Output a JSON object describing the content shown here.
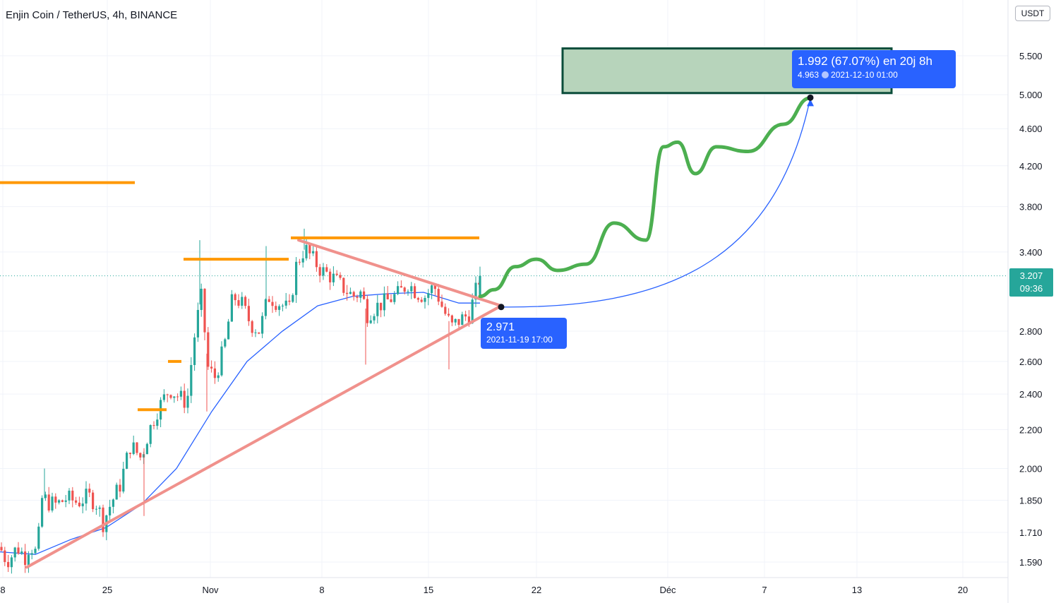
{
  "header": {
    "title": "Enjin Coin / TetherUS, 4h, BINANCE",
    "currency": "USDT"
  },
  "price_tag": {
    "price": "3.207",
    "countdown": "09:36"
  },
  "labels": {
    "start": {
      "price": "2.971",
      "datetime": "2021-11-19 17:00"
    },
    "end": {
      "change": "1.992 (67.07%) en 20j 8h",
      "price": "4.963",
      "datetime": "2021-12-10  01:00"
    }
  },
  "colors": {
    "up": "#26a69a",
    "down": "#ef5350",
    "ma": "#2962ff",
    "resistance": "#ff9800",
    "trendline": "#f0918c",
    "projection": "#4caf50",
    "target_fill": "#b7d4bb",
    "target_border": "#0b4d3a",
    "label_bg": "#2962ff"
  },
  "chart_data": {
    "type": "candlestick",
    "scale": "log",
    "x_ticks": [
      "8",
      "25",
      "Nov",
      "8",
      "15",
      "22",
      "Déc",
      "7",
      "13",
      "20"
    ],
    "y_ticks": [
      "1.590",
      "1.710",
      "1.850",
      "2.000",
      "2.200",
      "2.400",
      "2.600",
      "2.800",
      "3.400",
      "3.800",
      "4.200",
      "4.600",
      "5.000",
      "5.500"
    ],
    "y_range": [
      1.55,
      6.1
    ],
    "last_price": 3.207,
    "anchors": [
      {
        "t": 0,
        "p": 1.65
      },
      {
        "t": 6,
        "p": 1.61
      },
      {
        "t": 12,
        "p": 1.6
      },
      {
        "t": 18,
        "p": 1.62
      },
      {
        "t": 24,
        "p": 1.65
      },
      {
        "t": 30,
        "p": 1.63
      },
      {
        "t": 36,
        "p": 1.61
      },
      {
        "t": 42,
        "p": 1.66
      },
      {
        "t": 50,
        "p": 1.63
      },
      {
        "t": 55,
        "p": 1.7
      },
      {
        "t": 60,
        "p": 1.87
      },
      {
        "t": 68,
        "p": 1.84
      },
      {
        "t": 80,
        "p": 1.83
      },
      {
        "t": 95,
        "p": 1.86
      },
      {
        "t": 110,
        "p": 1.84
      },
      {
        "t": 125,
        "p": 1.87
      },
      {
        "t": 138,
        "p": 1.83
      },
      {
        "t": 146,
        "p": 1.75
      },
      {
        "t": 155,
        "p": 1.82
      },
      {
        "t": 170,
        "p": 1.92
      },
      {
        "t": 185,
        "p": 2.12
      },
      {
        "t": 200,
        "p": 2.05
      },
      {
        "t": 210,
        "p": 2.18
      },
      {
        "t": 222,
        "p": 2.3
      },
      {
        "t": 240,
        "p": 2.43
      },
      {
        "t": 255,
        "p": 2.38
      },
      {
        "t": 265,
        "p": 2.35
      },
      {
        "t": 275,
        "p": 2.75
      },
      {
        "t": 285,
        "p": 3.05
      },
      {
        "t": 295,
        "p": 2.55
      },
      {
        "t": 305,
        "p": 2.5
      },
      {
        "t": 318,
        "p": 2.7
      },
      {
        "t": 330,
        "p": 3.05
      },
      {
        "t": 342,
        "p": 3.0
      },
      {
        "t": 355,
        "p": 2.85
      },
      {
        "t": 368,
        "p": 2.8
      },
      {
        "t": 380,
        "p": 3.05
      },
      {
        "t": 395,
        "p": 3.0
      },
      {
        "t": 410,
        "p": 2.95
      },
      {
        "t": 420,
        "p": 3.3
      },
      {
        "t": 432,
        "p": 3.43
      },
      {
        "t": 442,
        "p": 3.35
      },
      {
        "t": 455,
        "p": 3.25
      },
      {
        "t": 470,
        "p": 3.2
      },
      {
        "t": 485,
        "p": 3.12
      },
      {
        "t": 500,
        "p": 3.05
      },
      {
        "t": 512,
        "p": 3.08
      },
      {
        "t": 520,
        "p": 2.92
      },
      {
        "t": 535,
        "p": 2.98
      },
      {
        "t": 550,
        "p": 3.02
      },
      {
        "t": 565,
        "p": 3.07
      },
      {
        "t": 578,
        "p": 3.15
      },
      {
        "t": 590,
        "p": 3.08
      },
      {
        "t": 602,
        "p": 3.05
      },
      {
        "t": 615,
        "p": 3.13
      },
      {
        "t": 628,
        "p": 2.95
      },
      {
        "t": 640,
        "p": 2.83
      },
      {
        "t": 652,
        "p": 2.88
      },
      {
        "t": 665,
        "p": 2.92
      },
      {
        "t": 680,
        "p": 3.2
      }
    ],
    "wicks": [
      {
        "t": 63,
        "p": 2.0
      },
      {
        "t": 204,
        "p": 1.78
      },
      {
        "t": 283,
        "p": 3.5
      },
      {
        "t": 377,
        "p": 3.45
      },
      {
        "t": 431,
        "p": 3.6
      },
      {
        "t": 518,
        "p": 2.58
      },
      {
        "t": 636,
        "p": 2.55
      },
      {
        "t": 293,
        "p": 2.3
      }
    ],
    "ma_line": [
      {
        "t": 0,
        "p": 1.63
      },
      {
        "t": 50,
        "p": 1.62
      },
      {
        "t": 100,
        "p": 1.68
      },
      {
        "t": 150,
        "p": 1.73
      },
      {
        "t": 200,
        "p": 1.83
      },
      {
        "t": 250,
        "p": 2.0
      },
      {
        "t": 300,
        "p": 2.3
      },
      {
        "t": 350,
        "p": 2.6
      },
      {
        "t": 400,
        "p": 2.8
      },
      {
        "t": 450,
        "p": 2.98
      },
      {
        "t": 500,
        "p": 3.05
      },
      {
        "t": 550,
        "p": 3.07
      },
      {
        "t": 600,
        "p": 3.08
      },
      {
        "t": 650,
        "p": 3.0
      },
      {
        "t": 680,
        "p": 3.0
      }
    ],
    "resistance_levels": [
      {
        "t1": 0,
        "t2": 191,
        "p": 4.03
      },
      {
        "t1": 260,
        "t2": 409,
        "p": 3.34
      },
      {
        "t1": 412,
        "t2": 679,
        "p": 3.52
      },
      {
        "t1": 238,
        "t2": 257,
        "p": 2.6
      },
      {
        "t1": 195,
        "t2": 236,
        "p": 2.31
      }
    ],
    "trendlines": [
      {
        "t1": 38,
        "p1": 1.57,
        "t2": 710,
        "p2": 2.98
      },
      {
        "t1": 423,
        "p1": 3.5,
        "t2": 710,
        "p2": 2.98
      }
    ],
    "projection_path": [
      {
        "t": 680,
        "p": 3.05
      },
      {
        "t": 700,
        "p": 3.1
      },
      {
        "t": 730,
        "p": 3.28
      },
      {
        "t": 760,
        "p": 3.34
      },
      {
        "t": 790,
        "p": 3.25
      },
      {
        "t": 830,
        "p": 3.3
      },
      {
        "t": 870,
        "p": 3.65
      },
      {
        "t": 915,
        "p": 3.5
      },
      {
        "t": 940,
        "p": 4.4
      },
      {
        "t": 960,
        "p": 4.45
      },
      {
        "t": 985,
        "p": 4.12
      },
      {
        "t": 1015,
        "p": 4.4
      },
      {
        "t": 1060,
        "p": 4.35
      },
      {
        "t": 1110,
        "p": 4.65
      },
      {
        "t": 1148,
        "p": 4.96
      }
    ],
    "measure": {
      "t1": 710,
      "p1": 2.971,
      "t2": 1148,
      "p2": 4.963
    },
    "target_zone": {
      "t1": 797,
      "t2": 1263,
      "p_low": 5.02,
      "p_high": 5.6
    }
  }
}
